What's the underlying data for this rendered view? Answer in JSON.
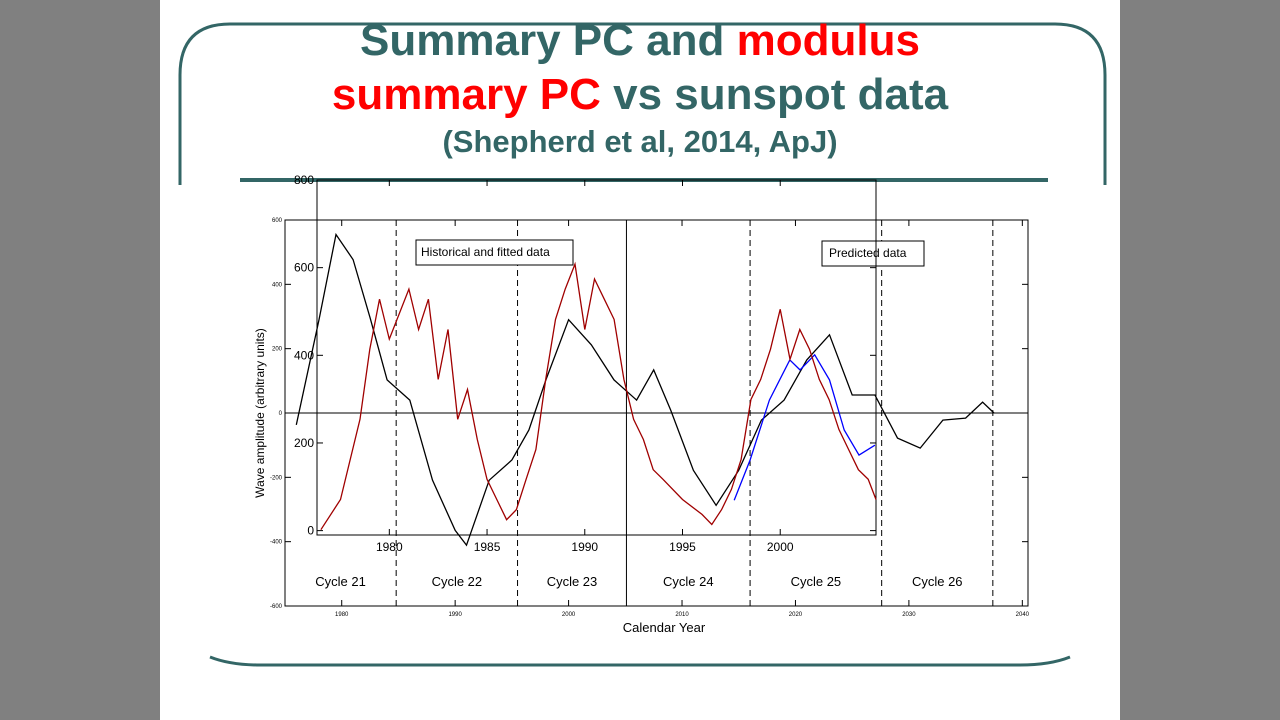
{
  "slide": {
    "title_lines": [
      [
        {
          "text": "Summary PC and",
          "color": "#336666"
        },
        {
          "text": "modulus",
          "color": "#ff0000"
        }
      ],
      [
        {
          "text": "summary PC",
          "color": "#ff0000"
        },
        {
          "text": "vs sunspot data",
          "color": "#336666"
        }
      ]
    ],
    "citation": "(Shepherd et al, 2014, ApJ)"
  },
  "chart_data": [
    {
      "type": "line",
      "xlabel": "Calendar Year",
      "ylabel": "Wave amplitude (arbitrary units)",
      "xlim": [
        1975,
        2040.5
      ],
      "ylim": [
        -600,
        600
      ],
      "xticks": [
        1980,
        1990,
        2000,
        2010,
        2020,
        2030,
        2040
      ],
      "yticks": [
        -600,
        -400,
        -200,
        0,
        200,
        400,
        600
      ],
      "annotations": [
        "Historical and fitted data",
        "Predicted data"
      ],
      "vlines": [
        {
          "x": 1984.8,
          "style": "dashed"
        },
        {
          "x": 1995.5,
          "style": "dashed"
        },
        {
          "x": 2005.1,
          "style": "solid"
        },
        {
          "x": 2016,
          "style": "dashed"
        },
        {
          "x": 2027.6,
          "style": "dashed"
        },
        {
          "x": 2037.4,
          "style": "dashed"
        }
      ],
      "cycle_labels": [
        "Cycle 21",
        "Cycle 22",
        "Cycle 23",
        "Cycle 24",
        "Cycle 25",
        "Cycle 26"
      ],
      "series": [
        {
          "color": "#000000",
          "x": [
            1976,
            1978,
            1979.5,
            1981,
            1982.5,
            1984,
            1986,
            1988,
            1990,
            1991,
            1993,
            1995,
            1996.5,
            1998,
            2000,
            2002,
            2004,
            2006,
            2007.5,
            2009,
            2011,
            2013,
            2015,
            2017,
            2019,
            2021,
            2023,
            2025,
            2027,
            2029,
            2031,
            2033,
            2035,
            2036.5,
            2037.5
          ],
          "values": [
            -37,
            290,
            555,
            477,
            296,
            103,
            40,
            -209,
            -365,
            -411,
            -209,
            -146,
            -53,
            103,
            290,
            212,
            103,
            40,
            134,
            9,
            -178,
            -287,
            -178,
            -22,
            40,
            165,
            243,
            56,
            56,
            -78,
            -109,
            -22,
            -16,
            34,
            0
          ]
        },
        {
          "color": "#0000ff",
          "x": [
            2014.6,
            2016,
            2017.7,
            2019.5,
            2020.4,
            2021.7,
            2023,
            2024.3,
            2025.6,
            2027
          ],
          "values": [
            -271,
            -146,
            40,
            165,
            134,
            181,
            103,
            -53,
            -131,
            -100
          ]
        }
      ]
    },
    {
      "type": "line",
      "xlim": [
        1976.3,
        2004.9
      ],
      "ylim": [
        -10,
        800
      ],
      "xticks": [
        1980,
        1985,
        1990,
        1995,
        2000
      ],
      "yticks": [
        0,
        200,
        400,
        600,
        800
      ],
      "series": [
        {
          "color": "#a00000",
          "x": [
            1976.5,
            1977.5,
            1978.5,
            1979,
            1979.5,
            1980,
            1981,
            1981.5,
            1982,
            1982.5,
            1983,
            1983.5,
            1984,
            1984.5,
            1985,
            1985.5,
            1986,
            1986.5,
            1987,
            1987.5,
            1988,
            1988.5,
            1989,
            1989.5,
            1990,
            1990.5,
            1991,
            1991.5,
            1992,
            1992.5,
            1993,
            1993.5,
            1994,
            1995,
            1996,
            1996.5,
            1997,
            1997.5,
            1998,
            1998.5,
            1999,
            1999.5,
            2000,
            2000.5,
            2001,
            2001.5,
            2002,
            2002.5,
            2003,
            2003.5,
            2004,
            2004.5,
            2004.9
          ],
          "values": [
            2,
            71,
            254,
            414,
            528,
            437,
            551,
            459,
            528,
            345,
            459,
            254,
            322,
            208,
            117,
            71,
            25,
            48,
            117,
            185,
            345,
            482,
            551,
            608,
            459,
            574,
            528,
            482,
            345,
            254,
            208,
            139,
            117,
            71,
            37,
            14,
            48,
            94,
            162,
            299,
            345,
            414,
            505,
            391,
            459,
            414,
            345,
            299,
            231,
            185,
            139,
            117,
            71
          ]
        }
      ]
    }
  ]
}
